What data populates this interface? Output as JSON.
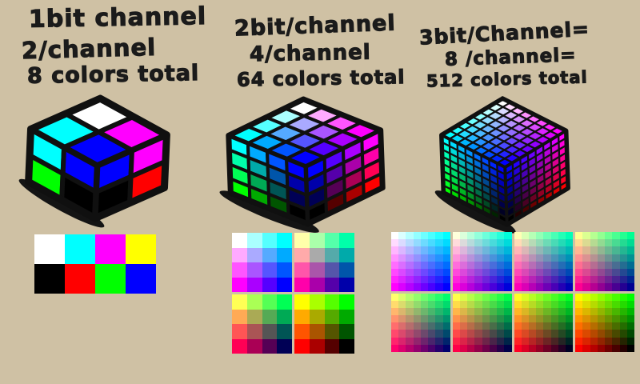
{
  "background_color": "#cfc1a4",
  "ink_color": "#1b1b1b",
  "columns": [
    {
      "id": "1-bit",
      "bits_per_channel": 1,
      "levels_per_channel": 2,
      "colors_total": 8,
      "label_lines": [
        "1bit channel",
        "2/channel",
        "8 colors total"
      ],
      "cube": {
        "cells_per_edge": 2,
        "levels": [
          0,
          255
        ]
      },
      "palette": {
        "rows": 2,
        "cols": 4,
        "colors": [
          "#ffffff",
          "#00ffff",
          "#ff00ff",
          "#ffff00",
          "#000000",
          "#ff0000",
          "#00ff00",
          "#0000ff"
        ]
      }
    },
    {
      "id": "2-bit",
      "bits_per_channel": 2,
      "levels_per_channel": 4,
      "colors_total": 64,
      "label_lines": [
        "2bit/channel",
        "4/channel",
        "64 colors total"
      ],
      "cube": {
        "cells_per_edge": 4,
        "levels": [
          0,
          85,
          170,
          255
        ]
      },
      "palette": {
        "block_cols": 2,
        "block_rows": 2,
        "levels": [
          0,
          85,
          170,
          255
        ]
      }
    },
    {
      "id": "3-bit",
      "bits_per_channel": 3,
      "levels_per_channel": 8,
      "colors_total": 512,
      "label_lines": [
        "3bit/Channel=",
        "8 /channel=",
        "512 colors total"
      ],
      "cube": {
        "cells_per_edge": 8,
        "levels": [
          0,
          36,
          73,
          109,
          146,
          182,
          219,
          255
        ]
      },
      "palette": {
        "block_cols": 4,
        "block_rows": 2,
        "levels": [
          0,
          36,
          73,
          109,
          146,
          182,
          219,
          255
        ]
      }
    }
  ]
}
